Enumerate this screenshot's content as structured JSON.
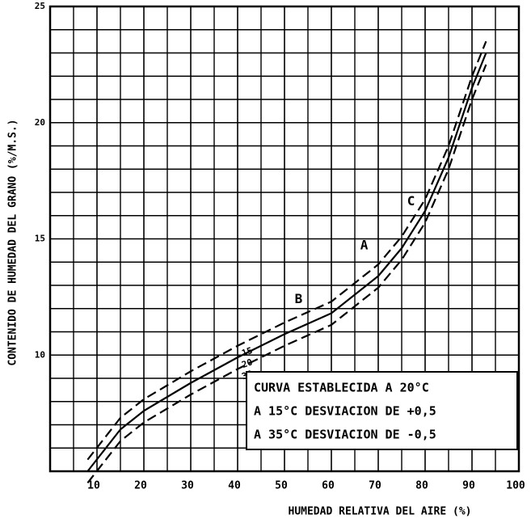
{
  "chart_data": {
    "type": "line",
    "xlabel": "HUMEDAD RELATIVA DEL AIRE (%)",
    "ylabel": "CONTENIDO DE HUMEDAD DEL GRANO (%/M.S.)",
    "xlim": [
      0,
      100
    ],
    "xticks": [
      10,
      20,
      30,
      40,
      50,
      60,
      70,
      80,
      90,
      100
    ],
    "ylim": [
      5,
      25
    ],
    "yticks": [
      10,
      15,
      20,
      25
    ],
    "grid": true,
    "x": [
      8,
      15,
      20,
      30,
      40,
      50,
      60,
      70,
      75,
      80,
      85,
      90,
      93
    ],
    "series": [
      {
        "name": "15",
        "color": "#000",
        "dashed": true,
        "values": [
          5.5,
          7.3,
          8.1,
          9.3,
          10.4,
          11.4,
          12.3,
          13.9,
          15.1,
          16.7,
          19.0,
          22.0,
          23.5
        ]
      },
      {
        "name": "20",
        "color": "#000",
        "dashed": false,
        "values": [
          5.0,
          6.8,
          7.6,
          8.8,
          9.9,
          10.9,
          11.8,
          13.4,
          14.6,
          16.2,
          18.5,
          21.5,
          23.0
        ]
      },
      {
        "name": "35",
        "color": "#000",
        "dashed": true,
        "values": [
          4.5,
          6.3,
          7.1,
          8.3,
          9.4,
          10.4,
          11.3,
          12.9,
          14.1,
          15.7,
          18.0,
          21.0,
          22.5
        ]
      }
    ],
    "annotations": [
      {
        "text": "A",
        "x": 67,
        "y": 14.7
      },
      {
        "text": "B",
        "x": 53,
        "y": 12.4
      },
      {
        "text": "C",
        "x": 77,
        "y": 16.6
      }
    ],
    "legend_lines": [
      "CURVA ESTABLECIDA A 20°C",
      "A 15°C DESVIACION DE +0,5",
      "A 35°C DESVIACION DE -0,5"
    ]
  }
}
